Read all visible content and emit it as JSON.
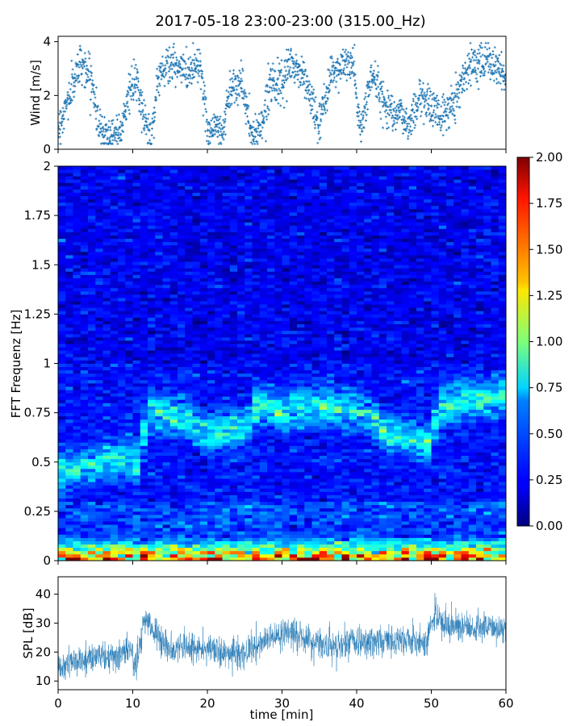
{
  "figure": {
    "title": "2017-05-18 23:00-23:00 (315.00_Hz)"
  },
  "chart_data": [
    {
      "type": "scatter",
      "name": "wind",
      "ylabel": "Wind [m/s]",
      "xlim": [
        0,
        60
      ],
      "ylim": [
        0,
        4.2
      ],
      "yticks": [
        0,
        2,
        4
      ],
      "color": "#1f77b4",
      "marker": "+",
      "segments": [
        [
          0,
          0.7
        ],
        [
          2,
          2.4
        ],
        [
          3,
          3.3
        ],
        [
          4.5,
          2.6
        ],
        [
          5.5,
          0.8
        ],
        [
          7,
          0.5
        ],
        [
          8.5,
          0.9
        ],
        [
          9.5,
          2.1
        ],
        [
          10.5,
          2.5
        ],
        [
          11.5,
          1.2
        ],
        [
          12.5,
          0.5
        ],
        [
          13.5,
          2.8
        ],
        [
          15,
          3.2
        ],
        [
          16,
          3.0
        ],
        [
          17.5,
          2.9
        ],
        [
          19,
          3.3
        ],
        [
          20,
          0.7
        ],
        [
          21,
          0.9
        ],
        [
          22,
          0.6
        ],
        [
          23,
          2.2
        ],
        [
          24.5,
          2.6
        ],
        [
          26,
          0.4
        ],
        [
          27.5,
          1.1
        ],
        [
          28.5,
          2.7
        ],
        [
          30,
          2.2
        ],
        [
          31,
          3.2
        ],
        [
          33,
          2.7
        ],
        [
          35,
          0.8
        ],
        [
          36.5,
          2.8
        ],
        [
          38,
          3.1
        ],
        [
          39.5,
          3.2
        ],
        [
          40.5,
          0.6
        ],
        [
          42,
          2.8
        ],
        [
          44,
          1.6
        ],
        [
          45.5,
          1.4
        ],
        [
          47,
          0.9
        ],
        [
          48.5,
          2.0
        ],
        [
          50,
          1.6
        ],
        [
          51.5,
          1.2
        ],
        [
          53,
          1.8
        ],
        [
          55,
          3.1
        ],
        [
          56.5,
          3.4
        ],
        [
          58,
          3.2
        ],
        [
          60,
          2.6
        ]
      ]
    },
    {
      "type": "heatmap",
      "name": "spectrogram",
      "ylabel": "FFT Frequenz [Hz]",
      "xlim": [
        0,
        60
      ],
      "ylim": [
        0,
        2
      ],
      "yticks": [
        0,
        0.25,
        0.5,
        0.75,
        1,
        1.25,
        1.5,
        1.75,
        2
      ],
      "ytick_labels": [
        "0",
        "0.25",
        "0.5",
        "0.75",
        "1",
        "1.25",
        "1.5",
        "1.75",
        "2"
      ],
      "colormap": "jet",
      "vmin": 0,
      "vmax": 2,
      "colorbar_ticks": [
        "0.00",
        "0.25",
        "0.50",
        "0.75",
        "1.00",
        "1.25",
        "1.50",
        "1.75",
        "2.00"
      ],
      "peak_band": [
        [
          0,
          0.45
        ],
        [
          3,
          0.47
        ],
        [
          6,
          0.5
        ],
        [
          9,
          0.52
        ],
        [
          11,
          0.5
        ],
        [
          12,
          0.78
        ],
        [
          15,
          0.72
        ],
        [
          17,
          0.74
        ],
        [
          18.5,
          0.68
        ],
        [
          20,
          0.64
        ],
        [
          22,
          0.66
        ],
        [
          25,
          0.66
        ],
        [
          27,
          0.8
        ],
        [
          30,
          0.75
        ],
        [
          33,
          0.78
        ],
        [
          36,
          0.78
        ],
        [
          39,
          0.77
        ],
        [
          42,
          0.74
        ],
        [
          44,
          0.64
        ],
        [
          47,
          0.62
        ],
        [
          50,
          0.6
        ],
        [
          51,
          0.78
        ],
        [
          55,
          0.82
        ],
        [
          60,
          0.84
        ]
      ]
    },
    {
      "type": "line",
      "name": "spl",
      "ylabel": "SPL [dB]",
      "xlabel": "time [min]",
      "xlim": [
        0,
        60
      ],
      "ylim": [
        7,
        46
      ],
      "yticks": [
        10,
        20,
        30,
        40
      ],
      "xticks": [
        0,
        10,
        20,
        30,
        40,
        50,
        60
      ],
      "color": "#1f77b4",
      "trend": [
        [
          0,
          15
        ],
        [
          2,
          16
        ],
        [
          4,
          17
        ],
        [
          6,
          19
        ],
        [
          8,
          18
        ],
        [
          9.5,
          22
        ],
        [
          10.5,
          14
        ],
        [
          11.5,
          31
        ],
        [
          13,
          27
        ],
        [
          15,
          21
        ],
        [
          17,
          22
        ],
        [
          19,
          21
        ],
        [
          21,
          21
        ],
        [
          23,
          19
        ],
        [
          25,
          20
        ],
        [
          27,
          23
        ],
        [
          29,
          25
        ],
        [
          31,
          27
        ],
        [
          33,
          24
        ],
        [
          35,
          23
        ],
        [
          37,
          22
        ],
        [
          39,
          24
        ],
        [
          41,
          23
        ],
        [
          43,
          24
        ],
        [
          45,
          24
        ],
        [
          47,
          25
        ],
        [
          49,
          23
        ],
        [
          50.5,
          32
        ],
        [
          52,
          29
        ],
        [
          54,
          29
        ],
        [
          56,
          28
        ],
        [
          58,
          29
        ],
        [
          60,
          27
        ]
      ]
    }
  ]
}
